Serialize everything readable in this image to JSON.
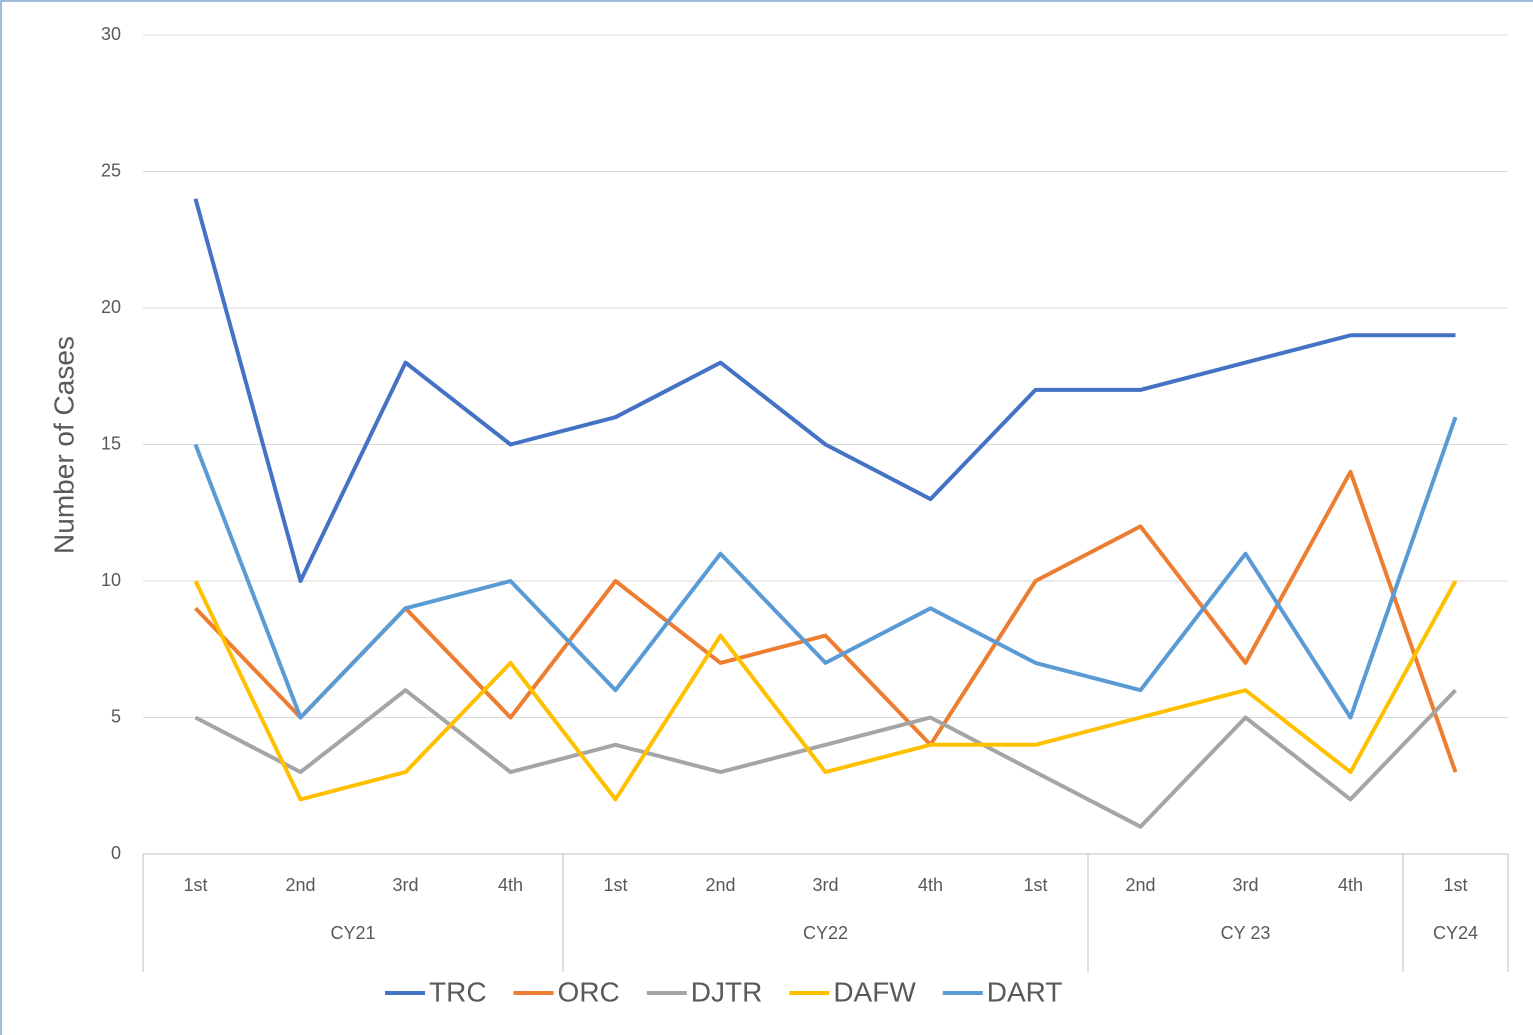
{
  "chart_data": {
    "type": "line",
    "y_label": "Number of Cases",
    "categories": [
      "1st",
      "2nd",
      "3rd",
      "4th",
      "1st",
      "2nd",
      "3rd",
      "4th",
      "1st",
      "2nd",
      "3rd",
      "4th",
      "1st"
    ],
    "groups": [
      {
        "label": "CY21",
        "span": 4
      },
      {
        "label": "CY22",
        "span": 5
      },
      {
        "label": "CY 23",
        "span": 3
      },
      {
        "label": "CY24",
        "span": 1
      }
    ],
    "series": [
      {
        "name": "TRC",
        "color": "#4472c4",
        "values": [
          24,
          10,
          18,
          15,
          16,
          18,
          15,
          13,
          17,
          17,
          18,
          19,
          19
        ]
      },
      {
        "name": "ORC",
        "color": "#ed7d31",
        "values": [
          9,
          5,
          9,
          5,
          10,
          7,
          8,
          4,
          10,
          12,
          7,
          14,
          3
        ]
      },
      {
        "name": "DJTR",
        "color": "#a5a5a5",
        "values": [
          5,
          3,
          6,
          3,
          4,
          3,
          4,
          5,
          3,
          1,
          5,
          2,
          6
        ]
      },
      {
        "name": "DAFW",
        "color": "#ffc000",
        "values": [
          10,
          2,
          3,
          7,
          2,
          8,
          3,
          4,
          4,
          5,
          6,
          3,
          10
        ]
      },
      {
        "name": "DART",
        "color": "#5b9bd5",
        "values": [
          15,
          5,
          9,
          10,
          6,
          11,
          7,
          9,
          7,
          6,
          11,
          5,
          16
        ]
      }
    ],
    "ylim": [
      0,
      30
    ],
    "yticks": [
      0,
      5,
      10,
      15,
      20,
      25,
      30
    ],
    "grid": true,
    "legend": "bottom"
  }
}
